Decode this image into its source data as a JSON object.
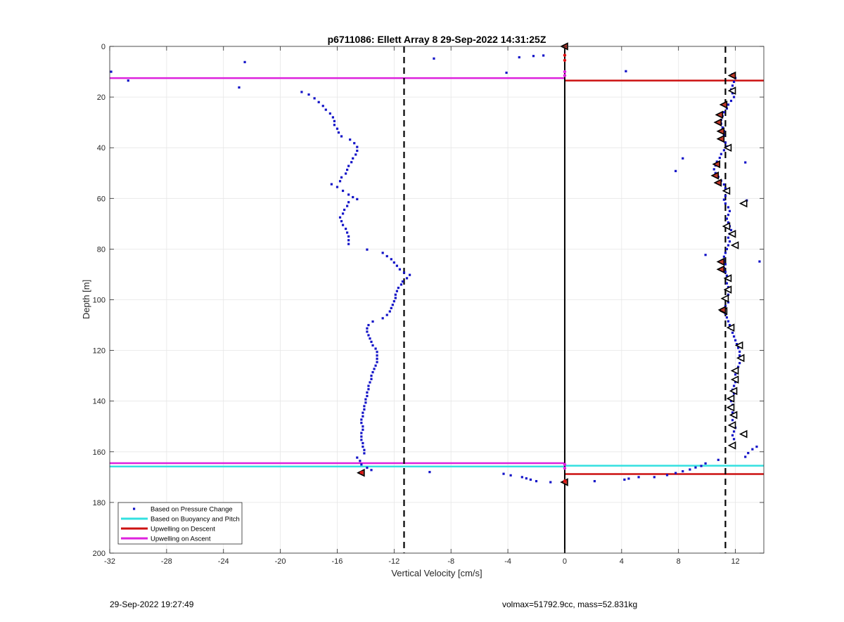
{
  "chart_data": {
    "type": "scatter",
    "title": "p6711086: Ellett Array 8 29-Sep-2022 14:31:25Z",
    "xlabel": "Vertical Velocity [cm/s]",
    "ylabel": "Depth [m]",
    "xlim": [
      -32,
      14
    ],
    "ylim": [
      0,
      200
    ],
    "y_reversed": true,
    "xticks": [
      -32,
      -28,
      -24,
      -20,
      -16,
      -12,
      -8,
      -4,
      0,
      4,
      8,
      12
    ],
    "yticks": [
      0,
      20,
      40,
      60,
      80,
      100,
      120,
      140,
      160,
      180,
      200
    ],
    "grid": true,
    "legend_position": "bottom-left",
    "reference_lines": {
      "dashed_vertical_x": [
        -11.3,
        11.3
      ],
      "solid_vertical_x": 0
    },
    "series": [
      {
        "name": "Based on Pressure Change",
        "style": "points",
        "color": "#1414c8",
        "points": [
          [
            -31.9,
            10
          ],
          [
            -30.7,
            13.5
          ],
          [
            -22.5,
            6.2
          ],
          [
            -22.9,
            16.2
          ],
          [
            -9.2,
            4.8
          ],
          [
            -4.1,
            10.4
          ],
          [
            -3.2,
            4.3
          ],
          [
            -2.2,
            3.8
          ],
          [
            -1.5,
            3.6
          ],
          [
            4.3,
            9.8
          ],
          [
            -18.5,
            18
          ],
          [
            -18.0,
            19
          ],
          [
            -17.6,
            20.5
          ],
          [
            -17.3,
            22
          ],
          [
            -17.0,
            23.5
          ],
          [
            -16.8,
            25
          ],
          [
            -16.5,
            26.5
          ],
          [
            -16.3,
            28
          ],
          [
            -16.2,
            29.5
          ],
          [
            -16.2,
            31
          ],
          [
            -16.0,
            32.5
          ],
          [
            -15.9,
            34
          ],
          [
            -15.7,
            35.5
          ],
          [
            -15.1,
            36.8
          ],
          [
            -14.8,
            38.2
          ],
          [
            -14.6,
            39.7
          ],
          [
            -14.6,
            41.2
          ],
          [
            -14.7,
            42.7
          ],
          [
            -14.9,
            44.2
          ],
          [
            -15.0,
            45.7
          ],
          [
            -15.2,
            47.2
          ],
          [
            -15.3,
            48.7
          ],
          [
            -15.4,
            50.2
          ],
          [
            -15.7,
            51.7
          ],
          [
            -15.8,
            53.2
          ],
          [
            -16.4,
            54.4
          ],
          [
            -16.0,
            55.5
          ],
          [
            -15.6,
            57
          ],
          [
            -15.2,
            58.5
          ],
          [
            -14.9,
            59.5
          ],
          [
            -14.6,
            60.3
          ],
          [
            -15.2,
            61.5
          ],
          [
            -15.3,
            63
          ],
          [
            -15.5,
            64.5
          ],
          [
            -15.6,
            66
          ],
          [
            -15.8,
            67.5
          ],
          [
            -15.7,
            69
          ],
          [
            -15.6,
            70.5
          ],
          [
            -15.4,
            72
          ],
          [
            -15.3,
            73.5
          ],
          [
            -15.2,
            75
          ],
          [
            -15.2,
            76.5
          ],
          [
            -15.2,
            78
          ],
          [
            -13.9,
            80.2
          ],
          [
            -12.8,
            81.5
          ],
          [
            -12.5,
            82.8
          ],
          [
            -12.2,
            84
          ],
          [
            -12.0,
            85.3
          ],
          [
            -11.8,
            86.6
          ],
          [
            -11.6,
            88
          ],
          [
            -11.3,
            89.3
          ],
          [
            -10.9,
            90.2
          ],
          [
            -11.1,
            91.5
          ],
          [
            -11.4,
            92.8
          ],
          [
            -11.5,
            94
          ],
          [
            -11.7,
            95.3
          ],
          [
            -11.8,
            96.6
          ],
          [
            -11.9,
            98
          ],
          [
            -11.9,
            99.3
          ],
          [
            -12.0,
            100.6
          ],
          [
            -12.1,
            102
          ],
          [
            -12.2,
            103.3
          ],
          [
            -12.3,
            104.6
          ],
          [
            -12.5,
            106
          ],
          [
            -12.8,
            107.3
          ],
          [
            -13.5,
            108.6
          ],
          [
            -13.8,
            110
          ],
          [
            -13.9,
            111.3
          ],
          [
            -13.9,
            112.6
          ],
          [
            -13.8,
            114
          ],
          [
            -13.7,
            115.3
          ],
          [
            -13.6,
            116.6
          ],
          [
            -13.5,
            118
          ],
          [
            -13.3,
            119.3
          ],
          [
            -13.2,
            120.6
          ],
          [
            -13.2,
            122
          ],
          [
            -13.2,
            123.3
          ],
          [
            -13.2,
            124.6
          ],
          [
            -13.3,
            126
          ],
          [
            -13.4,
            127.3
          ],
          [
            -13.5,
            128.6
          ],
          [
            -13.6,
            130
          ],
          [
            -13.6,
            131.3
          ],
          [
            -13.7,
            132.6
          ],
          [
            -13.8,
            134
          ],
          [
            -13.8,
            135.3
          ],
          [
            -13.9,
            136.6
          ],
          [
            -13.9,
            138
          ],
          [
            -14.0,
            139.3
          ],
          [
            -14.0,
            140.6
          ],
          [
            -14.1,
            142
          ],
          [
            -14.1,
            143.3
          ],
          [
            -14.2,
            144.6
          ],
          [
            -14.2,
            146
          ],
          [
            -14.3,
            147.3
          ],
          [
            -14.3,
            148.6
          ],
          [
            -14.2,
            150
          ],
          [
            -14.2,
            151.3
          ],
          [
            -14.3,
            152.6
          ],
          [
            -14.3,
            154
          ],
          [
            -14.3,
            155.3
          ],
          [
            -14.2,
            156.6
          ],
          [
            -14.2,
            158
          ],
          [
            -14.1,
            159.3
          ],
          [
            -14.1,
            160.6
          ],
          [
            -14.6,
            162.3
          ],
          [
            -14.4,
            163.6
          ],
          [
            -14.3,
            165
          ],
          [
            -13.9,
            166.3
          ],
          [
            -13.6,
            167.2
          ],
          [
            -9.5,
            168
          ],
          [
            -4.3,
            168.7
          ],
          [
            -3.8,
            169.3
          ],
          [
            -3.0,
            170
          ],
          [
            -2.7,
            170.5
          ],
          [
            -2.4,
            171
          ],
          [
            -2.0,
            171.6
          ],
          [
            -1.0,
            172
          ],
          [
            2.1,
            171.6
          ],
          [
            4.2,
            171
          ],
          [
            4.5,
            170.6
          ],
          [
            5.2,
            170
          ],
          [
            6.3,
            170
          ],
          [
            7.2,
            169.2
          ],
          [
            7.8,
            168.4
          ],
          [
            8.3,
            167.7
          ],
          [
            8.8,
            167
          ],
          [
            9.2,
            166.2
          ],
          [
            9.6,
            165.6
          ],
          [
            9.9,
            164.6
          ],
          [
            10.8,
            163.2
          ],
          [
            13.5,
            158
          ],
          [
            13.2,
            159
          ],
          [
            12.9,
            160.5
          ],
          [
            12.7,
            162
          ],
          [
            11.8,
            11
          ],
          [
            12.0,
            12.5
          ],
          [
            11.9,
            14
          ],
          [
            11.8,
            15.5
          ],
          [
            11.7,
            17
          ],
          [
            11.8,
            18.5
          ],
          [
            11.9,
            20
          ],
          [
            11.7,
            21.5
          ],
          [
            11.5,
            23
          ],
          [
            11.4,
            24.5
          ],
          [
            11.2,
            26
          ],
          [
            11.1,
            27.5
          ],
          [
            11.0,
            29
          ],
          [
            11.0,
            30.5
          ],
          [
            11.1,
            32
          ],
          [
            11.2,
            33.5
          ],
          [
            11.2,
            35
          ],
          [
            11.1,
            36.5
          ],
          [
            11.3,
            38
          ],
          [
            11.4,
            39.5
          ],
          [
            11.2,
            41
          ],
          [
            11.0,
            42.5
          ],
          [
            10.9,
            44
          ],
          [
            10.7,
            45.5
          ],
          [
            10.6,
            47
          ],
          [
            10.5,
            48.5
          ],
          [
            10.6,
            50
          ],
          [
            10.8,
            51.5
          ],
          [
            11.0,
            53
          ],
          [
            11.2,
            54.5
          ],
          [
            11.3,
            56
          ],
          [
            11.4,
            57.5
          ],
          [
            11.3,
            59
          ],
          [
            11.2,
            60.5
          ],
          [
            11.3,
            62
          ],
          [
            11.5,
            63.5
          ],
          [
            11.6,
            65
          ],
          [
            11.5,
            66.5
          ],
          [
            11.4,
            68
          ],
          [
            11.5,
            69.5
          ],
          [
            11.6,
            71
          ],
          [
            11.7,
            72.5
          ],
          [
            11.6,
            74
          ],
          [
            11.5,
            75.5
          ],
          [
            11.6,
            77
          ],
          [
            11.5,
            78.5
          ],
          [
            11.4,
            80
          ],
          [
            11.3,
            81.5
          ],
          [
            11.2,
            83
          ],
          [
            11.2,
            84.5
          ],
          [
            11.3,
            86
          ],
          [
            11.2,
            87.5
          ],
          [
            11.3,
            89
          ],
          [
            11.4,
            90.5
          ],
          [
            11.5,
            92
          ],
          [
            11.4,
            93.5
          ],
          [
            11.5,
            95
          ],
          [
            11.6,
            96.5
          ],
          [
            11.5,
            98
          ],
          [
            11.4,
            99.5
          ],
          [
            11.5,
            101
          ],
          [
            11.3,
            102.5
          ],
          [
            11.2,
            104
          ],
          [
            11.3,
            105.5
          ],
          [
            11.4,
            107
          ],
          [
            11.5,
            108.5
          ],
          [
            11.6,
            110
          ],
          [
            11.7,
            111.5
          ],
          [
            11.8,
            113
          ],
          [
            11.9,
            114.5
          ],
          [
            12.0,
            116
          ],
          [
            12.1,
            117.5
          ],
          [
            12.2,
            119
          ],
          [
            12.3,
            120.5
          ],
          [
            12.3,
            122
          ],
          [
            12.4,
            123.5
          ],
          [
            12.3,
            125
          ],
          [
            12.2,
            126.5
          ],
          [
            12.1,
            128
          ],
          [
            12.0,
            129.5
          ],
          [
            12.1,
            131
          ],
          [
            12.0,
            132.5
          ],
          [
            11.9,
            134
          ],
          [
            11.8,
            135.5
          ],
          [
            11.9,
            137
          ],
          [
            11.8,
            138.5
          ],
          [
            11.7,
            140
          ],
          [
            11.8,
            141.5
          ],
          [
            11.7,
            143
          ],
          [
            11.8,
            144.5
          ],
          [
            11.9,
            146
          ],
          [
            11.8,
            147.5
          ],
          [
            11.9,
            149
          ],
          [
            12.0,
            150.5
          ],
          [
            11.9,
            152
          ],
          [
            11.8,
            153.5
          ],
          [
            11.9,
            155
          ],
          [
            12.7,
            45.8
          ],
          [
            8.3,
            44.2
          ],
          [
            7.8,
            49.2
          ],
          [
            12.8,
            60.8
          ],
          [
            9.9,
            82.3
          ],
          [
            13.7,
            84.9
          ]
        ]
      },
      {
        "name": "Based on Buoyancy and Pitch",
        "style": "hline",
        "color": "#33e0e0",
        "segments": [
          {
            "y": 165.8,
            "x1": -32,
            "x2": 0
          },
          {
            "y": 165.5,
            "x1": 0,
            "x2": 14
          }
        ]
      },
      {
        "name": "Upwelling on Descent",
        "style": "hline",
        "color": "#cc1111",
        "segments": [
          {
            "y": 13.5,
            "x1": 0,
            "x2": 14
          },
          {
            "y": 168.8,
            "x1": 0,
            "x2": 14
          }
        ]
      },
      {
        "name": "Upwelling on Ascent",
        "style": "hline",
        "color": "#dd22dd",
        "segments": [
          {
            "y": 12.5,
            "x1": -32,
            "x2": 0
          },
          {
            "y": 164.5,
            "x1": -32,
            "x2": 0
          }
        ]
      }
    ],
    "markers": {
      "filled_triangles": [
        [
          0,
          0
        ],
        [
          11.8,
          11.5
        ],
        [
          11.2,
          23
        ],
        [
          10.9,
          27
        ],
        [
          10.8,
          30
        ],
        [
          11.0,
          33.5
        ],
        [
          11.0,
          36.5
        ],
        [
          10.7,
          46.5
        ],
        [
          10.6,
          51
        ],
        [
          10.8,
          53.8
        ],
        [
          11.0,
          85
        ],
        [
          11.0,
          88
        ],
        [
          11.1,
          104
        ],
        [
          -14.3,
          168.3
        ],
        [
          0,
          172
        ]
      ],
      "open_triangles": [
        [
          11.8,
          17.5
        ],
        [
          11.5,
          40
        ],
        [
          11.4,
          57
        ],
        [
          12.6,
          62
        ],
        [
          11.4,
          71
        ],
        [
          11.8,
          74
        ],
        [
          12.0,
          78.5
        ],
        [
          11.5,
          91.5
        ],
        [
          11.5,
          96
        ],
        [
          11.3,
          99.5
        ],
        [
          11.2,
          104.5
        ],
        [
          11.7,
          111
        ],
        [
          12.3,
          118
        ],
        [
          12.4,
          123
        ],
        [
          12.0,
          128
        ],
        [
          12.0,
          131.5
        ],
        [
          11.9,
          136
        ],
        [
          11.7,
          139
        ],
        [
          11.7,
          142.5
        ],
        [
          11.9,
          145.5
        ],
        [
          11.8,
          149.5
        ],
        [
          12.6,
          153
        ],
        [
          11.8,
          157.5
        ]
      ],
      "red_dots": [
        [
          0,
          3.5
        ],
        [
          0,
          5.5
        ],
        [
          -14.3,
          168.2
        ],
        [
          0,
          171.5
        ]
      ],
      "magenta_dots": [
        [
          0,
          10
        ],
        [
          0,
          11.5
        ],
        [
          0,
          165
        ],
        [
          0,
          166.5
        ]
      ]
    }
  },
  "footer": {
    "left": "29-Sep-2022 19:27:49",
    "right": "volmax=51792.9cc, mass=52.831kg"
  }
}
